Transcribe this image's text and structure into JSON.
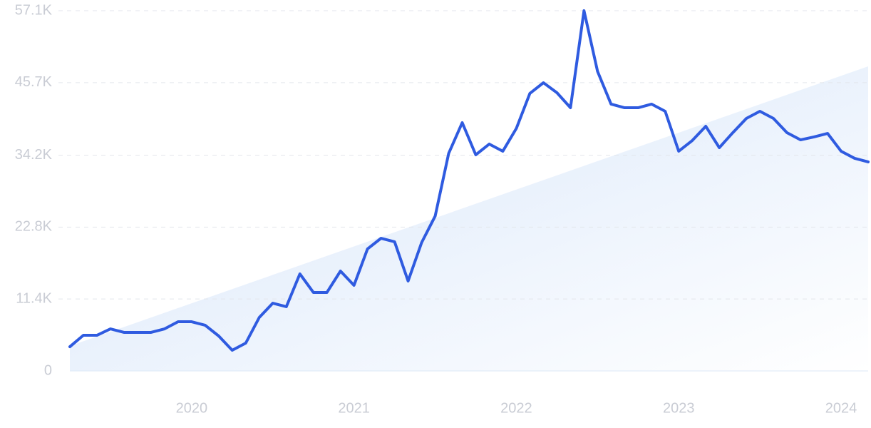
{
  "chart_data": {
    "type": "line",
    "x": [
      2019.25,
      2019.3333,
      2019.4167,
      2019.5,
      2019.5833,
      2019.6667,
      2019.75,
      2019.8333,
      2019.9167,
      2020,
      2020.0833,
      2020.1667,
      2020.25,
      2020.3333,
      2020.4167,
      2020.5,
      2020.5833,
      2020.6667,
      2020.75,
      2020.8333,
      2020.9167,
      2021,
      2021.0833,
      2021.1667,
      2021.25,
      2021.3333,
      2021.4167,
      2021.5,
      2021.5833,
      2021.6667,
      2021.75,
      2021.8333,
      2021.9167,
      2022,
      2022.0833,
      2022.1667,
      2022.25,
      2022.3333,
      2022.4167,
      2022.5,
      2022.5833,
      2022.6667,
      2022.75,
      2022.8333,
      2022.9167,
      2023,
      2023.0833,
      2023.1667,
      2023.25,
      2023.3333,
      2023.4167,
      2023.5,
      2023.5833,
      2023.6667,
      2023.75,
      2023.8333,
      2023.9167,
      2024,
      2024.0833,
      2024.1667
    ],
    "series": [
      {
        "color": "#2f5be0",
        "values": [
          3840,
          5650,
          5650,
          6670,
          6110,
          6110,
          6110,
          6670,
          7800,
          7800,
          7240,
          5540,
          3280,
          4410,
          8480,
          10740,
          10180,
          15380,
          12440,
          12440,
          15830,
          13570,
          19340,
          21030,
          20470,
          14250,
          20350,
          24540,
          34490,
          39350,
          34260,
          35960,
          34830,
          38440,
          43990,
          45680,
          44100,
          41720,
          57100,
          47490,
          42290,
          41720,
          41720,
          42290,
          41160,
          34830,
          36520,
          38780,
          35390,
          37770,
          40030,
          41160,
          40030,
          37770,
          36630,
          37090,
          37650,
          34830,
          33700,
          33130
        ]
      }
    ],
    "trend": {
      "x": [
        2019.25,
        2024.1667
      ],
      "values": [
        3960,
        48280
      ],
      "color": "#dbe8fb"
    },
    "xlim": [
      2019.25,
      2024.1667
    ],
    "xticks": [
      2020,
      2021,
      2022,
      2023,
      2024
    ],
    "ylim": [
      0,
      57100
    ],
    "yticks": [
      0,
      {
        "value": 11400,
        "label": "11.4K"
      },
      {
        "value": 22800,
        "label": "22.8K"
      },
      {
        "value": 34200,
        "label": "34.2K"
      },
      {
        "value": 45700,
        "label": "45.7K"
      },
      {
        "value": 57100,
        "label": "57.1K"
      }
    ],
    "grid": true
  }
}
